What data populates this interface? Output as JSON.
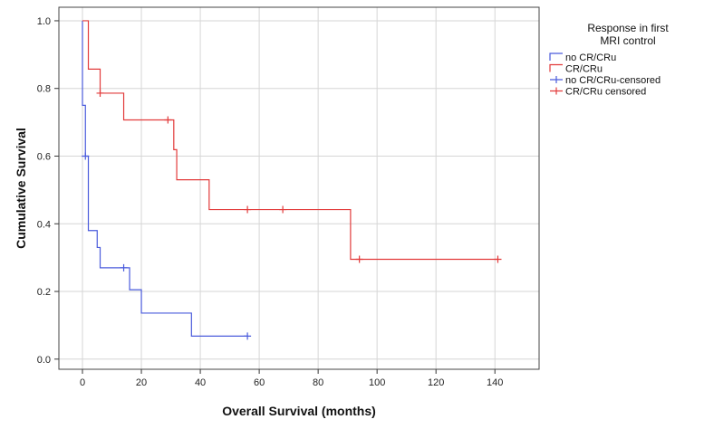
{
  "chart_data": {
    "type": "line",
    "step": true,
    "xlabel": "Overall Survival (months)",
    "ylabel": "Cumulative Survival",
    "xlim": [
      -8,
      155
    ],
    "ylim": [
      -0.03,
      1.04
    ],
    "xticks": [
      0,
      20,
      40,
      60,
      80,
      100,
      120,
      140
    ],
    "yticks": [
      0.0,
      0.2,
      0.4,
      0.6,
      0.8,
      1.0
    ],
    "ytick_labels": [
      "0.0",
      "0.2",
      "0.4",
      "0.6",
      "0.8",
      "1.0"
    ],
    "grid": true,
    "legend": {
      "title_lines": [
        "Response in first",
        "MRI control"
      ],
      "placement": "top-right",
      "entries": [
        {
          "label": "no CR/CRu",
          "color": "#4a5bdc",
          "kind": "step"
        },
        {
          "label": "CR/CRu",
          "color": "#e23b3b",
          "kind": "step"
        },
        {
          "label": "no CR/CRu-censored",
          "color": "#4a5bdc",
          "kind": "censor"
        },
        {
          "label": "CR/CRu censored",
          "color": "#e23b3b",
          "kind": "censor"
        }
      ]
    },
    "series": [
      {
        "name": "no CR/CRu",
        "color": "#4a5bdc",
        "x": [
          0,
          0,
          1,
          2,
          5,
          6,
          16,
          20,
          37,
          56
        ],
        "y": [
          1.0,
          0.75,
          0.6,
          0.38,
          0.33,
          0.27,
          0.205,
          0.136,
          0.068,
          0.068
        ],
        "censored": [
          [
            1,
            0.6
          ],
          [
            14,
            0.27
          ],
          [
            56,
            0.068
          ]
        ]
      },
      {
        "name": "CR/CRu",
        "color": "#e23b3b",
        "x": [
          0,
          2,
          6,
          14,
          31,
          32,
          43,
          91,
          141
        ],
        "y": [
          1.0,
          0.857,
          0.786,
          0.707,
          0.619,
          0.53,
          0.442,
          0.295,
          0.295
        ],
        "censored": [
          [
            6,
            0.786
          ],
          [
            29,
            0.707
          ],
          [
            56,
            0.442
          ],
          [
            68,
            0.442
          ],
          [
            94,
            0.295
          ],
          [
            141,
            0.295
          ]
        ]
      }
    ]
  }
}
